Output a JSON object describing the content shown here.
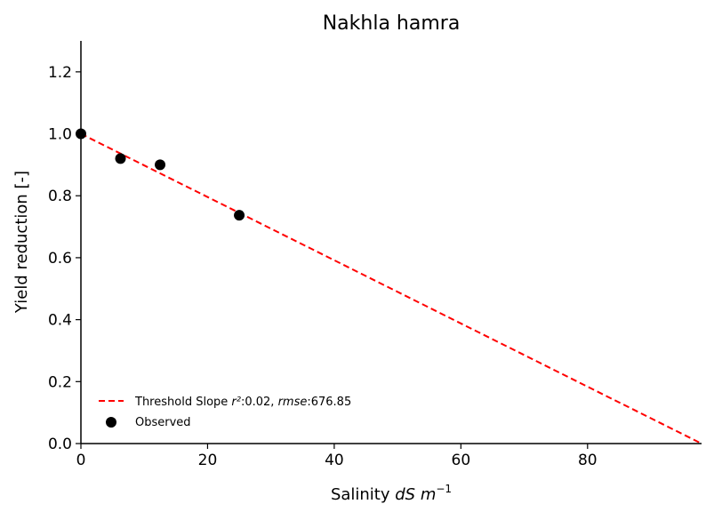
{
  "chart_data": {
    "type": "scatter",
    "title": "Nakhla hamra",
    "xlabel_prefix": "Salinity ",
    "xlabel_var": "dS m",
    "xlabel_exp": "−1",
    "ylabel": "Yield reduction [-]",
    "xlim": [
      0,
      98
    ],
    "ylim": [
      0,
      1.3
    ],
    "xticks": [
      0,
      20,
      40,
      60,
      80
    ],
    "yticks": [
      0.0,
      0.2,
      0.4,
      0.6,
      0.8,
      1.0,
      1.2
    ],
    "xtick_labels": [
      "0",
      "20",
      "40",
      "60",
      "80"
    ],
    "ytick_labels": [
      "0.0",
      "0.2",
      "0.4",
      "0.6",
      "0.8",
      "1.0",
      "1.2"
    ],
    "grid": false,
    "legend_position": "lower-left",
    "series": [
      {
        "name": "Threshold Slope",
        "kind": "dashed-line",
        "color": "#ff0000",
        "x": [
          0,
          98
        ],
        "y": [
          1.0,
          0.0
        ]
      },
      {
        "name": "Observed",
        "kind": "scatter",
        "color": "#000000",
        "x": [
          0,
          6.25,
          12.5,
          25
        ],
        "y": [
          1.0,
          0.92,
          0.9,
          0.737
        ]
      }
    ],
    "legend": {
      "line_label_prefix": "Threshold Slope ",
      "r2_label": "r²",
      "r2_value": ":0.02, ",
      "rmse_label": "rmse",
      "rmse_value": ":676.85",
      "observed_label": "Observed"
    }
  }
}
